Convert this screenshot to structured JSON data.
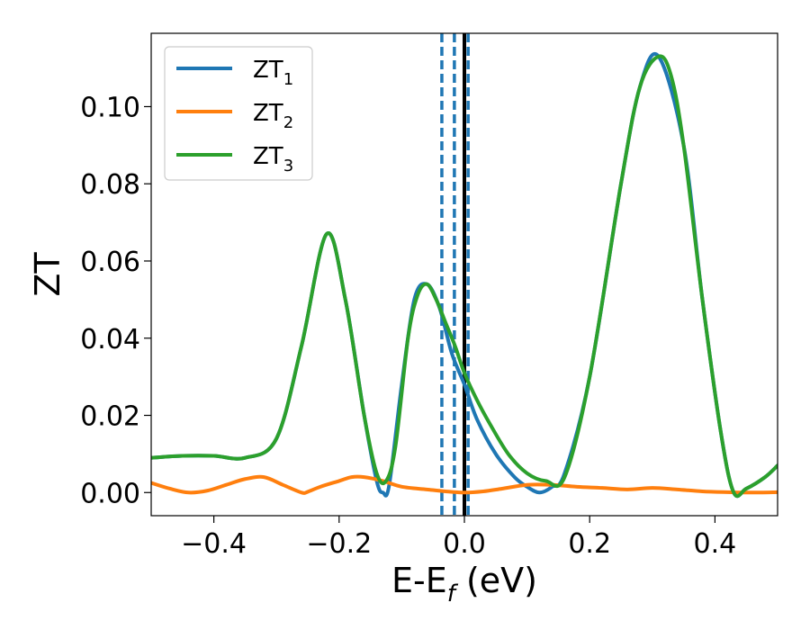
{
  "chart_data": {
    "type": "line",
    "title": "",
    "xlabel": "E-E",
    "xlabel_sub": "f",
    "xlabel_unit": " (eV)",
    "ylabel": "ZT",
    "xlim": [
      -0.5,
      0.5
    ],
    "ylim": [
      -0.006,
      0.119
    ],
    "grid": false,
    "legend_position": "top-left",
    "x_ticks": [
      -0.4,
      -0.2,
      0.0,
      0.2,
      0.4
    ],
    "x_tick_labels": [
      "−0.4",
      "−0.2",
      "0.0",
      "0.2",
      "0.4"
    ],
    "y_ticks": [
      0.0,
      0.02,
      0.04,
      0.06,
      0.08,
      0.1
    ],
    "y_tick_labels": [
      "0.00",
      "0.02",
      "0.04",
      "0.06",
      "0.08",
      "0.10"
    ],
    "vertical_lines": [
      {
        "x": -0.036,
        "style": "dashed",
        "color": "#1f77b4"
      },
      {
        "x": -0.016,
        "style": "dashed",
        "color": "#1f77b4"
      },
      {
        "x": 0.0,
        "style": "solid",
        "color": "#000000"
      },
      {
        "x": 0.006,
        "style": "dashed",
        "color": "#1f77b4"
      }
    ],
    "series": [
      {
        "name": "ZT",
        "name_sub": "1",
        "color": "#1f77b4",
        "x": [
          -0.5,
          -0.45,
          -0.4,
          -0.35,
          -0.3,
          -0.26,
          -0.22,
          -0.19,
          -0.16,
          -0.14,
          -0.13,
          -0.12,
          -0.1,
          -0.08,
          -0.06,
          -0.04,
          -0.02,
          0.0,
          0.02,
          0.05,
          0.08,
          0.1,
          0.12,
          0.14,
          0.16,
          0.2,
          0.25,
          0.28,
          0.31,
          0.35,
          0.38,
          0.41,
          0.43,
          0.45,
          0.48,
          0.5
        ],
        "y": [
          0.009,
          0.0095,
          0.0095,
          0.009,
          0.014,
          0.038,
          0.067,
          0.05,
          0.02,
          0.003,
          0.0,
          0.002,
          0.028,
          0.05,
          0.054,
          0.048,
          0.036,
          0.028,
          0.019,
          0.01,
          0.004,
          0.0015,
          0.0,
          0.0015,
          0.005,
          0.03,
          0.08,
          0.105,
          0.113,
          0.09,
          0.05,
          0.015,
          0.0,
          0.001,
          0.004,
          0.007
        ]
      },
      {
        "name": "ZT",
        "name_sub": "2",
        "color": "#ff7f0e",
        "x": [
          -0.5,
          -0.47,
          -0.44,
          -0.41,
          -0.38,
          -0.35,
          -0.32,
          -0.29,
          -0.26,
          -0.25,
          -0.23,
          -0.2,
          -0.18,
          -0.16,
          -0.13,
          -0.1,
          -0.06,
          -0.03,
          0.0,
          0.03,
          0.06,
          0.1,
          0.14,
          0.18,
          0.22,
          0.26,
          0.3,
          0.34,
          0.38,
          0.42,
          0.46,
          0.5
        ],
        "y": [
          0.0025,
          0.001,
          0.0,
          0.0005,
          0.002,
          0.0035,
          0.004,
          0.002,
          0.0,
          0.0002,
          0.0015,
          0.003,
          0.004,
          0.004,
          0.003,
          0.0015,
          0.0008,
          0.0003,
          0.0,
          0.0003,
          0.001,
          0.002,
          0.002,
          0.0015,
          0.0012,
          0.0008,
          0.0012,
          0.0008,
          0.0003,
          0.0001,
          0.0,
          0.0001
        ]
      },
      {
        "name": "ZT",
        "name_sub": "3",
        "color": "#2ca02c",
        "x": [
          -0.5,
          -0.45,
          -0.4,
          -0.35,
          -0.3,
          -0.26,
          -0.22,
          -0.19,
          -0.16,
          -0.14,
          -0.125,
          -0.11,
          -0.09,
          -0.075,
          -0.06,
          -0.045,
          -0.03,
          -0.015,
          0.0,
          0.02,
          0.04,
          0.07,
          0.1,
          0.13,
          0.16,
          0.2,
          0.25,
          0.28,
          0.31,
          0.33,
          0.35,
          0.38,
          0.41,
          0.43,
          0.45,
          0.48,
          0.5
        ],
        "y": [
          0.009,
          0.0095,
          0.0095,
          0.009,
          0.014,
          0.038,
          0.067,
          0.05,
          0.02,
          0.005,
          0.003,
          0.012,
          0.04,
          0.051,
          0.054,
          0.05,
          0.044,
          0.038,
          0.031,
          0.024,
          0.018,
          0.01,
          0.005,
          0.003,
          0.004,
          0.03,
          0.08,
          0.105,
          0.113,
          0.108,
          0.09,
          0.05,
          0.015,
          0.0,
          0.001,
          0.004,
          0.007
        ]
      }
    ]
  }
}
